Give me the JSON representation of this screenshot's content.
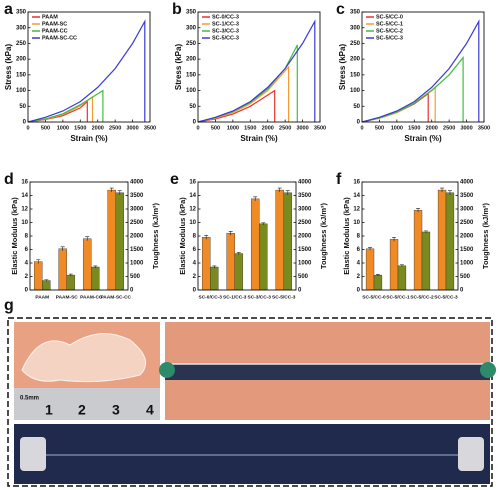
{
  "chart_data": [
    {
      "label": "a",
      "type": "line",
      "xlabel": "Strain (%)",
      "ylabel": "Stress (kPa)",
      "xlim": [
        0,
        3500
      ],
      "ylim": [
        0,
        350
      ],
      "xticks": [
        0,
        500,
        1000,
        1500,
        2000,
        2500,
        3000,
        3500
      ],
      "yticks": [
        0,
        50,
        100,
        150,
        200,
        250,
        300,
        350
      ],
      "series": [
        {
          "name": "PAAM",
          "color": "#e8332e",
          "x": [
            0,
            500,
            1000,
            1500,
            1700,
            1700
          ],
          "values": [
            0,
            8,
            20,
            45,
            65,
            0
          ]
        },
        {
          "name": "PAAM-SC",
          "color": "#f39c34",
          "x": [
            0,
            500,
            1000,
            1500,
            1850,
            1850
          ],
          "values": [
            0,
            9,
            24,
            52,
            80,
            0
          ]
        },
        {
          "name": "PAAM-CC",
          "color": "#3fbf3f",
          "x": [
            0,
            500,
            1000,
            1500,
            2150,
            2150
          ],
          "values": [
            0,
            10,
            26,
            55,
            100,
            0
          ]
        },
        {
          "name": "PAAM-SC-CC",
          "color": "#3a3ad6",
          "x": [
            0,
            500,
            1000,
            1500,
            2000,
            2500,
            3000,
            3350,
            3350
          ],
          "values": [
            0,
            15,
            35,
            65,
            110,
            170,
            250,
            320,
            0
          ]
        }
      ]
    },
    {
      "label": "b",
      "type": "line",
      "xlabel": "Strain (%)",
      "ylabel": "Stress (kPa)",
      "xlim": [
        0,
        3500
      ],
      "ylim": [
        0,
        350
      ],
      "xticks": [
        0,
        500,
        1000,
        1500,
        2000,
        2500,
        3000,
        3500
      ],
      "yticks": [
        0,
        50,
        100,
        150,
        200,
        250,
        300,
        350
      ],
      "series": [
        {
          "name": "SC-0/CC-3",
          "color": "#e8332e",
          "x": [
            0,
            500,
            1000,
            1500,
            2200,
            2200
          ],
          "values": [
            0,
            10,
            25,
            50,
            100,
            0
          ]
        },
        {
          "name": "SC-1/CC-3",
          "color": "#f39c34",
          "x": [
            0,
            500,
            1000,
            1500,
            2000,
            2600,
            2600
          ],
          "values": [
            0,
            12,
            30,
            58,
            100,
            175,
            0
          ]
        },
        {
          "name": "SC-3/CC-3",
          "color": "#3fbf3f",
          "x": [
            0,
            500,
            1000,
            1500,
            2000,
            2500,
            2850,
            2850
          ],
          "values": [
            0,
            14,
            33,
            62,
            105,
            170,
            245,
            0
          ]
        },
        {
          "name": "SC-5/CC-3",
          "color": "#3a3ad6",
          "x": [
            0,
            500,
            1000,
            1500,
            2000,
            2500,
            3000,
            3350,
            3350
          ],
          "values": [
            0,
            15,
            35,
            65,
            110,
            170,
            250,
            320,
            0
          ]
        }
      ]
    },
    {
      "label": "c",
      "type": "line",
      "xlabel": "Strain (%)",
      "ylabel": "Stress (kPa)",
      "xlim": [
        0,
        3500
      ],
      "ylim": [
        0,
        350
      ],
      "xticks": [
        0,
        500,
        1000,
        1500,
        2000,
        2500,
        3000,
        3500
      ],
      "yticks": [
        0,
        50,
        100,
        150,
        200,
        250,
        300,
        350
      ],
      "series": [
        {
          "name": "SC-5/CC-0",
          "color": "#e8332e",
          "x": [
            0,
            500,
            1000,
            1500,
            1900,
            1900
          ],
          "values": [
            0,
            12,
            30,
            58,
            90,
            0
          ]
        },
        {
          "name": "SC-5/CC-1",
          "color": "#f39c34",
          "x": [
            0,
            500,
            1000,
            1500,
            2100,
            2100
          ],
          "values": [
            0,
            12,
            30,
            60,
            110,
            0
          ]
        },
        {
          "name": "SC-5/CC-2",
          "color": "#3fbf3f",
          "x": [
            0,
            500,
            1000,
            1500,
            2000,
            2500,
            2900,
            2900
          ],
          "values": [
            0,
            13,
            32,
            60,
            100,
            150,
            205,
            0
          ]
        },
        {
          "name": "SC-5/CC-3",
          "color": "#3a3ad6",
          "x": [
            0,
            500,
            1000,
            1500,
            2000,
            2500,
            3000,
            3350,
            3350
          ],
          "values": [
            0,
            15,
            35,
            65,
            110,
            170,
            250,
            320,
            0
          ]
        }
      ]
    },
    {
      "label": "d",
      "type": "bar",
      "ylabel": "Elastic Modulus (kPa)",
      "y2label": "Toughness (kJ/m³)",
      "ylim": [
        0,
        16
      ],
      "y2lim": [
        0,
        4000
      ],
      "yticks": [
        0,
        2,
        4,
        6,
        8,
        10,
        12,
        14,
        16
      ],
      "y2ticks": [
        0,
        500,
        1000,
        1500,
        2000,
        2500,
        3000,
        3500,
        4000
      ],
      "categories": [
        "PAAM",
        "PAAM-SC",
        "PAAM-CC",
        "PAAM-SC-CC"
      ],
      "series": [
        {
          "color": "#f08a24",
          "values": [
            4.2,
            6.1,
            7.6,
            14.8
          ],
          "errors": [
            0.3,
            0.3,
            0.3,
            0.3
          ]
        },
        {
          "color": "#7a8a1e",
          "axis": "y2",
          "values": [
            350,
            550,
            850,
            3600
          ],
          "errors": [
            30,
            40,
            40,
            80
          ]
        }
      ]
    },
    {
      "label": "e",
      "type": "bar",
      "ylabel": "Elastic Modulus (kPa)",
      "y2label": "Toughness (kJ/m³)",
      "ylim": [
        0,
        16
      ],
      "y2lim": [
        0,
        4000
      ],
      "yticks": [
        0,
        2,
        4,
        6,
        8,
        10,
        12,
        14,
        16
      ],
      "y2ticks": [
        0,
        500,
        1000,
        1500,
        2000,
        2500,
        3000,
        3500,
        4000
      ],
      "categories": [
        "SC-0/CC-3",
        "SC-1/CC-3",
        "SC-3/CC-3",
        "SC-5/CC-3"
      ],
      "series": [
        {
          "color": "#f08a24",
          "values": [
            7.8,
            8.4,
            13.5,
            14.8
          ],
          "errors": [
            0.3,
            0.3,
            0.3,
            0.3
          ]
        },
        {
          "color": "#7a8a1e",
          "axis": "y2",
          "values": [
            850,
            1350,
            2450,
            3600
          ],
          "errors": [
            40,
            40,
            40,
            80
          ]
        }
      ]
    },
    {
      "label": "f",
      "type": "bar",
      "ylabel": "Elastic Modulus (kPa)",
      "y2label": "Toughness (kJ/m³)",
      "ylim": [
        0,
        16
      ],
      "y2lim": [
        0,
        4000
      ],
      "yticks": [
        0,
        2,
        4,
        6,
        8,
        10,
        12,
        14,
        16
      ],
      "y2ticks": [
        0,
        500,
        1000,
        1500,
        2000,
        2500,
        3000,
        3500,
        4000
      ],
      "categories": [
        "SC-5/CC-0",
        "SC-5/CC-1",
        "SC-5/CC-2",
        "SC-5/CC-3"
      ],
      "series": [
        {
          "color": "#f08a24",
          "values": [
            6.1,
            7.5,
            11.8,
            14.8
          ],
          "errors": [
            0.2,
            0.3,
            0.3,
            0.3
          ]
        },
        {
          "color": "#7a8a1e",
          "axis": "y2",
          "values": [
            550,
            900,
            2150,
            3600
          ],
          "errors": [
            30,
            40,
            40,
            80
          ]
        }
      ]
    }
  ],
  "photos": {
    "label": "g",
    "scale": "0.5mm",
    "ruler": [
      "1",
      "2",
      "3",
      "4"
    ]
  }
}
